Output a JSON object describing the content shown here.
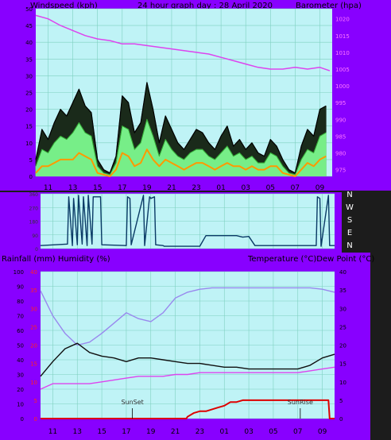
{
  "header": {
    "left": "Windspeed (kph)",
    "center": "24 hour graph day : 28 April 2020",
    "right": "Barometer (hpa)"
  },
  "middle_header": {
    "left": "Rainfall (mm)  Humidity (%)",
    "right": "Temperature (°C)Dew Point (°C)"
  },
  "compass": [
    "N",
    "W",
    "S",
    "E",
    "N"
  ],
  "x_ticks": [
    "11",
    "13",
    "15",
    "17",
    "19",
    "21",
    "23",
    "01",
    "03",
    "05",
    "07",
    "09"
  ],
  "annotations": {
    "sunset": "SunSet",
    "sunrise": "SunRise"
  },
  "colors": {
    "panel": "#8800ff",
    "plot_bg": "#bff3f6",
    "grid": "#7fd0c0",
    "gust": "#000000",
    "wind_avg": "#77ee88",
    "wind_low": "#ff9900",
    "barometer": "#dd44ee",
    "direction": "#0a3a66",
    "temperature": "#101010",
    "dewpoint": "#dd44ee",
    "humidity": "#9988ee",
    "rainfall": "#dd0000"
  },
  "chart_data": [
    {
      "type": "line",
      "name": "wind-barometer",
      "xlim": [
        0,
        24
      ],
      "ylim_left": [
        0,
        50
      ],
      "yticks_left": [
        0,
        5,
        10,
        15,
        20,
        25,
        30,
        35,
        40,
        45,
        50
      ],
      "ylim_right": [
        973,
        1023
      ],
      "yticks_right": [
        975,
        980,
        985,
        990,
        995,
        1000,
        1005,
        1010,
        1015,
        1020
      ],
      "grid": true,
      "series": [
        {
          "role": "barometer",
          "x": [
            0,
            1,
            2,
            3,
            4,
            5,
            6,
            7,
            8,
            9,
            10,
            11,
            12,
            13,
            14,
            15,
            16,
            17,
            18,
            19,
            20,
            21,
            22,
            23,
            23.8
          ],
          "y": [
            1021,
            1020,
            1018,
            1016.5,
            1015,
            1014,
            1013.5,
            1012.5,
            1012.5,
            1012,
            1011.5,
            1011,
            1010.5,
            1010,
            1009.5,
            1008.5,
            1007.5,
            1006.5,
            1005.5,
            1005,
            1005,
            1005.5,
            1005,
            1005.5,
            1004.5
          ]
        },
        {
          "role": "gust",
          "x": [
            0,
            0.5,
            1,
            1.5,
            2,
            2.5,
            3,
            3.5,
            4,
            4.5,
            5,
            5.5,
            6,
            6.5,
            7,
            7.5,
            8,
            8.5,
            9,
            9.5,
            10,
            10.5,
            11,
            11.5,
            12,
            12.5,
            13,
            13.5,
            14,
            14.5,
            15,
            15.5,
            16,
            16.5,
            17,
            17.5,
            18,
            18.5,
            19,
            19.5,
            20,
            20.5,
            21,
            21.5,
            22,
            22.5,
            23,
            23.5
          ],
          "y": [
            5,
            14,
            11,
            16,
            20,
            18,
            22,
            26,
            21,
            19,
            5,
            2,
            1,
            6,
            24,
            22,
            13,
            16,
            28,
            20,
            10,
            18,
            14,
            10,
            8,
            11,
            14,
            13,
            10,
            8,
            12,
            15,
            9,
            11,
            8,
            10,
            7,
            6,
            11,
            9,
            5,
            2,
            1,
            9,
            14,
            12,
            20,
            21
          ]
        },
        {
          "role": "average",
          "x": [
            0,
            0.5,
            1,
            1.5,
            2,
            2.5,
            3,
            3.5,
            4,
            4.5,
            5,
            5.5,
            6,
            6.5,
            7,
            7.5,
            8,
            8.5,
            9,
            9.5,
            10,
            10.5,
            11,
            11.5,
            12,
            12.5,
            13,
            13.5,
            14,
            14.5,
            15,
            15.5,
            16,
            16.5,
            17,
            17.5,
            18,
            18.5,
            19,
            19.5,
            20,
            20.5,
            21,
            21.5,
            22,
            22.5,
            23,
            23.5
          ],
          "y": [
            3,
            8,
            7,
            10,
            12,
            11,
            13,
            16,
            13,
            12,
            3,
            1,
            0.5,
            4,
            15,
            14,
            8,
            10,
            17,
            12,
            6,
            11,
            8,
            6,
            5,
            7,
            8,
            8,
            6,
            5,
            7,
            9,
            6,
            7,
            5,
            6,
            4,
            4,
            7,
            6,
            3,
            1,
            0.5,
            5,
            8,
            7,
            12,
            13
          ]
        },
        {
          "role": "low",
          "x": [
            0,
            0.5,
            1,
            1.5,
            2,
            2.5,
            3,
            3.5,
            4,
            4.5,
            5,
            5.5,
            6,
            6.5,
            7,
            7.5,
            8,
            8.5,
            9,
            9.5,
            10,
            10.5,
            11,
            11.5,
            12,
            12.5,
            13,
            13.5,
            14,
            14.5,
            15,
            15.5,
            16,
            16.5,
            17,
            17.5,
            18,
            18.5,
            19,
            19.5,
            20,
            20.5,
            21,
            21.5,
            22,
            22.5,
            23,
            23.5
          ],
          "y": [
            1,
            3,
            3,
            4,
            5,
            5,
            5,
            7,
            6,
            5,
            1,
            0.5,
            0,
            2,
            7,
            6,
            3,
            4,
            8,
            5,
            3,
            5,
            4,
            3,
            2,
            3,
            4,
            4,
            3,
            2,
            3,
            4,
            3,
            3,
            2,
            3,
            2,
            2,
            3,
            3,
            1,
            0.5,
            0,
            2,
            4,
            3,
            5,
            6
          ]
        }
      ]
    },
    {
      "type": "line",
      "name": "wind-direction",
      "xlim": [
        0,
        24
      ],
      "ylim": [
        0,
        360
      ],
      "yticks": [
        0,
        90,
        180,
        270,
        360
      ],
      "grid": true,
      "series": [
        {
          "role": "direction",
          "x": [
            0,
            2.2,
            2.3,
            2.6,
            2.7,
            3.0,
            3.1,
            3.4,
            3.5,
            3.8,
            3.9,
            4.2,
            4.3,
            4.9,
            5.0,
            7.0,
            7.1,
            7.3,
            7.4,
            8.4,
            8.5,
            8.9,
            9.0,
            9.3,
            9.4,
            10.0,
            10.1,
            13.0,
            13.5,
            16.0,
            16.5,
            17.0,
            17.5,
            22.5,
            22.6,
            22.8,
            22.9,
            23.5,
            23.6,
            24
          ],
          "y": [
            20,
            30,
            340,
            20,
            330,
            25,
            350,
            30,
            340,
            20,
            350,
            30,
            340,
            340,
            25,
            20,
            340,
            330,
            25,
            350,
            20,
            340,
            330,
            340,
            25,
            20,
            15,
            15,
            85,
            85,
            75,
            80,
            20,
            20,
            340,
            330,
            15,
            350,
            20,
            20
          ]
        }
      ]
    },
    {
      "type": "line",
      "name": "temperature-humidity-rain",
      "xlim": [
        0,
        24
      ],
      "ylim_left": [
        0,
        100
      ],
      "yticks_left": [
        0,
        10,
        20,
        30,
        40,
        50,
        60,
        70,
        80,
        90,
        100
      ],
      "ylim_right": [
        0,
        40
      ],
      "yticks_right": [
        0,
        5,
        10,
        15,
        20,
        25,
        30,
        35,
        40
      ],
      "grid": true,
      "series": [
        {
          "role": "humidity",
          "x": [
            0,
            1,
            2,
            3,
            4,
            5,
            6,
            7,
            8,
            9,
            10,
            11,
            12,
            13,
            14,
            15,
            16,
            17,
            18,
            19,
            20,
            21,
            22,
            23,
            24
          ],
          "y": [
            87,
            70,
            58,
            50,
            52,
            58,
            65,
            72,
            68,
            66,
            72,
            82,
            86,
            88,
            89,
            89,
            89,
            89,
            89,
            89,
            89,
            89,
            89,
            88,
            86
          ]
        },
        {
          "role": "temperature",
          "x": [
            0,
            1,
            2,
            3,
            4,
            5,
            6,
            7,
            8,
            9,
            10,
            11,
            12,
            13,
            14,
            15,
            16,
            17,
            18,
            19,
            20,
            21,
            22,
            23,
            24
          ],
          "y": [
            11.5,
            15.5,
            19,
            20.5,
            18,
            17,
            16.5,
            15.5,
            16.5,
            16.5,
            16,
            15.5,
            15,
            15,
            14.5,
            14,
            14,
            13.5,
            13.5,
            13.5,
            13.5,
            13.5,
            14.5,
            16.5,
            17.5
          ]
        },
        {
          "role": "dewpoint",
          "x": [
            0,
            1,
            2,
            3,
            4,
            5,
            6,
            7,
            8,
            9,
            10,
            11,
            12,
            13,
            14,
            15,
            16,
            17,
            18,
            19,
            20,
            21,
            22,
            23,
            24
          ],
          "y": [
            8,
            9.5,
            9.5,
            9.5,
            9.5,
            10,
            10.5,
            11,
            11.5,
            11.5,
            11.5,
            12,
            12,
            12.5,
            12.5,
            12.5,
            12.5,
            12.5,
            12.5,
            12.5,
            12.5,
            12.5,
            13,
            13.5,
            14
          ]
        },
        {
          "role": "rainfall",
          "x": [
            0,
            11.9,
            12,
            12.5,
            13,
            13.5,
            14,
            14.5,
            15,
            15.5,
            16,
            16.5,
            17,
            18,
            19,
            20,
            21,
            22,
            22.9,
            23.5,
            23.6,
            24
          ],
          "y": [
            0,
            0,
            0.5,
            1.5,
            2,
            2,
            2.5,
            3,
            3.5,
            4.5,
            4.5,
            5,
            5,
            5,
            5,
            5,
            5,
            5,
            5,
            5,
            0,
            0
          ]
        }
      ]
    }
  ]
}
